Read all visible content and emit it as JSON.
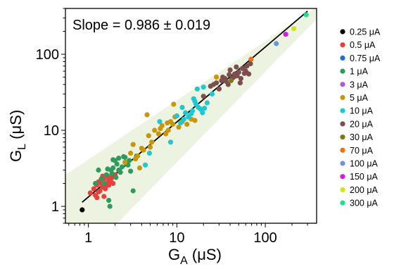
{
  "chart_data": {
    "type": "scatter",
    "title": "",
    "annotation": "Slope = 0.986 ± 0.019",
    "xlabel": {
      "main": "G",
      "sub": "A",
      "unit": " (μS)"
    },
    "ylabel": {
      "main": "G",
      "sub": "L",
      "unit": " (μS)"
    },
    "x_scale": "log",
    "y_scale": "log",
    "xlim": [
      0.55,
      380
    ],
    "ylim": [
      0.6,
      400
    ],
    "x_ticks": [
      1,
      10,
      100
    ],
    "x_tick_labels": [
      "1",
      "10",
      "100"
    ],
    "y_ticks": [
      1,
      10,
      100
    ],
    "y_tick_labels": [
      "1",
      "10",
      "100"
    ],
    "grid": false,
    "legend_position": "right-outside",
    "confidence_band": {
      "color": "#edf3e1",
      "lower": [
        [
          0.55,
          0.12
        ],
        [
          380,
          290
        ]
      ],
      "upper": [
        [
          0.55,
          2.6
        ],
        [
          380,
          420
        ]
      ]
    },
    "fit_line": {
      "slope": 0.986,
      "intercept_at_1": 1.33,
      "x_range": [
        0.85,
        300
      ],
      "color": "#000000"
    },
    "series": [
      {
        "name": "0.25 μA",
        "color": "#000000",
        "x": [
          0.85
        ],
        "y": [
          0.9
        ]
      },
      {
        "name": "0.5 μA",
        "color": "#e8413c",
        "x": [
          1.05,
          1.15,
          1.2,
          1.25,
          1.3,
          1.35,
          1.4,
          1.45,
          1.5,
          1.55,
          1.6,
          1.65,
          1.7,
          1.75,
          1.8,
          1.85,
          1.9,
          2.0,
          1.3,
          1.5,
          1.7,
          1.6,
          1.45,
          1.25
        ],
        "y": [
          1.5,
          1.7,
          1.4,
          1.9,
          2.1,
          1.6,
          2.0,
          1.8,
          2.3,
          1.7,
          2.0,
          2.5,
          1.9,
          2.2,
          2.1,
          2.4,
          2.0,
          2.6,
          1.55,
          1.35,
          2.2,
          1.9,
          2.5,
          1.3
        ]
      },
      {
        "name": "0.75 μA",
        "color": "#1f6fd6",
        "x": [],
        "y": []
      },
      {
        "name": "1 μA",
        "color": "#2e9a5c",
        "x": [
          1.2,
          1.3,
          1.5,
          1.6,
          1.75,
          1.8,
          1.85,
          1.9,
          2.0,
          2.1,
          2.2,
          2.3,
          2.4,
          2.5,
          2.6,
          2.8,
          3.0,
          3.2,
          1.7,
          1.9,
          2.2,
          2.6,
          1.4,
          3.5,
          2.9,
          1.65,
          2.05,
          2.7
        ],
        "y": [
          2.0,
          3.0,
          2.0,
          2.6,
          1.0,
          3.0,
          2.7,
          3.2,
          4.0,
          3.6,
          4.3,
          2.8,
          3.3,
          4.5,
          3.8,
          3.5,
          2.9,
          1.6,
          1.2,
          4.1,
          3.0,
          4.4,
          2.3,
          4.6,
          4.0,
          3.1,
          2.4,
          3.6
        ]
      },
      {
        "name": "3 μA",
        "color": "#a95fd6",
        "x": [],
        "y": []
      },
      {
        "name": "5 μA",
        "color": "#c9960b",
        "x": [
          2.6,
          3.0,
          3.4,
          3.8,
          4.2,
          4.6,
          5.0,
          5.6,
          6.2,
          6.8,
          7.5,
          8.0,
          8.5,
          9.0,
          9.5,
          10.5,
          11.5,
          13.0,
          14.5,
          16.0,
          4.0,
          5.2,
          6.5,
          7.8,
          9.2,
          3.2,
          4.8,
          28.0,
          35.0,
          3.6
        ],
        "y": [
          3.8,
          5.0,
          4.2,
          3.2,
          5.5,
          16.0,
          6.0,
          10.0,
          9.0,
          11.5,
          9.0,
          10.0,
          13.0,
          12.0,
          15.0,
          11.0,
          13.0,
          12.0,
          14.0,
          13.5,
          5.8,
          7.0,
          10.5,
          12.5,
          22.0,
          6.5,
          8.5,
          50.0,
          45.0,
          4.6
        ]
      },
      {
        "name": "10 μA",
        "color": "#1ec8d0",
        "x": [
          4.4,
          4.9,
          6.4,
          8.5,
          10.0,
          11.0,
          12.0,
          12.5,
          13.5,
          14.5,
          15.5,
          16.5,
          17.5,
          18.5,
          19.5,
          20.0,
          22.0,
          25.0,
          11.5,
          15.0,
          17.0,
          20.5,
          16.0
        ],
        "y": [
          3.5,
          5.0,
          13.0,
          7.0,
          15.5,
          12.5,
          14.0,
          17.0,
          15.0,
          16.5,
          26.0,
          22.0,
          20.0,
          19.0,
          17.0,
          37.0,
          23.0,
          30.0,
          20.0,
          18.0,
          35.0,
          19.5,
          24.0
        ]
      },
      {
        "name": "20 μA",
        "color": "#7b4f4d",
        "x": [
          20,
          24,
          28,
          32,
          35,
          38,
          40,
          42,
          45,
          48,
          50,
          52,
          55,
          58,
          60,
          62,
          65,
          68,
          30,
          36,
          44,
          53,
          57,
          47,
          39,
          33,
          26,
          61
        ],
        "y": [
          28,
          38,
          42,
          45,
          48,
          40,
          62,
          48,
          55,
          52,
          58,
          42,
          65,
          56,
          60,
          70,
          55,
          75,
          35,
          44,
          50,
          48,
          65,
          68,
          54,
          50,
          40,
          58
        ]
      },
      {
        "name": "30 μA",
        "color": "#7a7a16",
        "x": [
          41
        ],
        "y": [
          45
        ]
      },
      {
        "name": "70 μA",
        "color": "#f07016",
        "x": [
          69
        ],
        "y": [
          86
        ]
      },
      {
        "name": "100 μA",
        "color": "#6f97d6",
        "x": [
          133
        ],
        "y": [
          138
        ]
      },
      {
        "name": "150 μA",
        "color": "#d21fdc",
        "x": [
          170
        ],
        "y": [
          183
        ]
      },
      {
        "name": "200 μA",
        "color": "#cfe51f",
        "x": [
          210
        ],
        "y": [
          217
        ]
      },
      {
        "name": "300 μA",
        "color": "#22de88",
        "x": [
          290
        ],
        "y": [
          330
        ]
      }
    ]
  }
}
